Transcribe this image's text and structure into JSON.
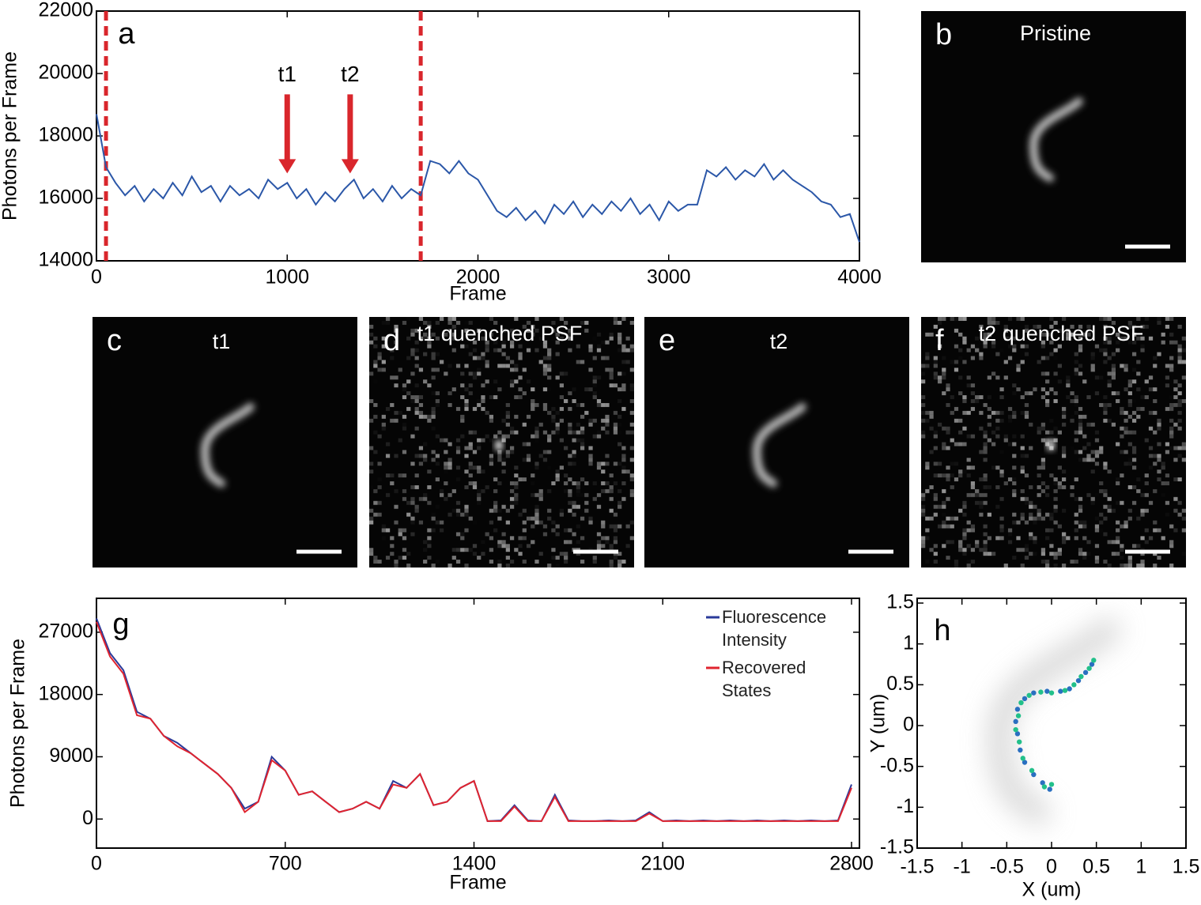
{
  "chart_data": [
    {
      "type": "line",
      "label": "a",
      "xlabel": "Frame",
      "ylabel": "Photons per Frame",
      "xlim": [
        0,
        4000
      ],
      "ylim": [
        14000,
        22000
      ],
      "xticks": [
        0,
        1000,
        2000,
        3000,
        4000
      ],
      "yticks": [
        14000,
        16000,
        18000,
        20000,
        22000
      ],
      "vlines": [
        50,
        1700
      ],
      "vline_color": "#d9262c",
      "annotations": [
        {
          "text": "t1",
          "x": 1000,
          "y": 16800
        },
        {
          "text": "t2",
          "x": 1330,
          "y": 16800
        }
      ],
      "annotation_color": "#d9262c",
      "x": [
        0,
        50,
        100,
        150,
        200,
        250,
        300,
        350,
        400,
        450,
        500,
        550,
        600,
        650,
        700,
        750,
        800,
        850,
        900,
        950,
        1000,
        1050,
        1100,
        1150,
        1200,
        1250,
        1300,
        1350,
        1400,
        1450,
        1500,
        1550,
        1600,
        1650,
        1700,
        1750,
        1800,
        1850,
        1900,
        1950,
        2000,
        2050,
        2100,
        2150,
        2200,
        2250,
        2300,
        2350,
        2400,
        2450,
        2500,
        2550,
        2600,
        2650,
        2700,
        2750,
        2800,
        2850,
        2900,
        2950,
        3000,
        3050,
        3100,
        3150,
        3200,
        3250,
        3300,
        3350,
        3400,
        3450,
        3500,
        3550,
        3600,
        3650,
        3700,
        3750,
        3800,
        3850,
        3900,
        3950,
        4000
      ],
      "series": [
        {
          "color": "#2b57a8",
          "values": [
            18700,
            17000,
            16500,
            16100,
            16400,
            15900,
            16300,
            16000,
            16500,
            16100,
            16700,
            16200,
            16400,
            15900,
            16400,
            16100,
            16300,
            16000,
            16600,
            16300,
            16500,
            16000,
            16300,
            15800,
            16200,
            15900,
            16300,
            16600,
            16000,
            16300,
            15900,
            16400,
            16000,
            16300,
            16100,
            17200,
            17100,
            16800,
            17200,
            16800,
            16600,
            16100,
            15600,
            15400,
            15700,
            15300,
            15600,
            15200,
            15800,
            15500,
            15900,
            15400,
            15800,
            15500,
            15900,
            15600,
            16000,
            15500,
            15800,
            15300,
            15900,
            15600,
            15800,
            15800,
            16900,
            16700,
            17000,
            16600,
            16900,
            16700,
            17100,
            16600,
            16900,
            16600,
            16400,
            16200,
            15900,
            15800,
            15400,
            15500,
            14600
          ]
        }
      ]
    },
    {
      "type": "line",
      "label": "g",
      "xlabel": "Frame",
      "ylabel": "Photons per Frame",
      "xlim": [
        0,
        2800
      ],
      "ylim": [
        -4200,
        31900
      ],
      "xticks": [
        0,
        700,
        1400,
        2100,
        2800
      ],
      "yticks": [
        0,
        9000,
        18000,
        27000
      ],
      "legend": "upper right",
      "x": [
        0,
        50,
        100,
        150,
        200,
        250,
        300,
        350,
        400,
        450,
        500,
        550,
        600,
        650,
        700,
        750,
        800,
        850,
        900,
        950,
        1000,
        1050,
        1100,
        1150,
        1200,
        1250,
        1300,
        1350,
        1400,
        1450,
        1500,
        1550,
        1600,
        1650,
        1700,
        1750,
        1800,
        1850,
        1900,
        1950,
        2000,
        2050,
        2100,
        2150,
        2200,
        2250,
        2300,
        2350,
        2400,
        2450,
        2500,
        2550,
        2600,
        2650,
        2700,
        2750,
        2800
      ],
      "series": [
        {
          "name": "Fluorescence Intensity",
          "color": "#2a3a9a",
          "values": [
            29000,
            24000,
            21500,
            15500,
            14500,
            12000,
            11000,
            9500,
            8000,
            6500,
            4500,
            1500,
            2500,
            9000,
            7000,
            3500,
            4000,
            2500,
            1000,
            1500,
            2500,
            1500,
            5500,
            4500,
            6500,
            2000,
            2500,
            4500,
            5500,
            -300,
            -200,
            2000,
            -200,
            -300,
            3500,
            -200,
            -300,
            -300,
            -200,
            -300,
            -200,
            1000,
            -300,
            -200,
            -300,
            -200,
            -300,
            -200,
            -300,
            -200,
            -300,
            -200,
            -300,
            -200,
            -300,
            -200,
            5000
          ]
        },
        {
          "name": "Recovered States",
          "color": "#e0242f",
          "values": [
            28500,
            23500,
            21000,
            15000,
            14500,
            12000,
            10500,
            9500,
            8000,
            6500,
            4500,
            1000,
            2500,
            8500,
            7000,
            3500,
            4000,
            2500,
            1000,
            1500,
            2500,
            1500,
            5000,
            4500,
            6500,
            2000,
            2500,
            4500,
            5500,
            -300,
            -300,
            1800,
            -300,
            -300,
            3200,
            -300,
            -300,
            -300,
            -300,
            -300,
            -300,
            800,
            -300,
            -300,
            -300,
            -300,
            -300,
            -300,
            -300,
            -300,
            -300,
            -300,
            -300,
            -300,
            -300,
            -300,
            4500
          ]
        }
      ]
    },
    {
      "type": "scatter",
      "label": "h",
      "xlabel": "X (um)",
      "ylabel": "Y (um)",
      "xlim": [
        -1.5,
        1.5
      ],
      "ylim": [
        -1.5,
        1.5
      ],
      "xticks": [
        -1.5,
        -1,
        -0.5,
        0,
        0.5,
        1,
        1.5
      ],
      "yticks": [
        -1.5,
        -1,
        -0.5,
        0,
        0.5,
        1,
        1.5
      ],
      "series": [
        {
          "color": "#2a6fc0",
          "x": [
            -0.02,
            -0.1,
            -0.2,
            -0.3,
            -0.35,
            -0.38,
            -0.4,
            -0.38,
            -0.3,
            -0.2,
            -0.05,
            0.1,
            0.2,
            0.3,
            0.38,
            0.45
          ],
          "values": [
            -0.78,
            -0.7,
            -0.6,
            -0.45,
            -0.3,
            -0.1,
            0.05,
            0.2,
            0.33,
            0.4,
            0.42,
            0.42,
            0.45,
            0.55,
            0.65,
            0.75
          ]
        },
        {
          "color": "#22c08a",
          "x": [
            0.0,
            -0.08,
            -0.22,
            -0.32,
            -0.36,
            -0.4,
            -0.37,
            -0.34,
            -0.25,
            -0.12,
            0.0,
            0.15,
            0.25,
            0.33,
            0.42,
            0.47
          ],
          "values": [
            -0.72,
            -0.75,
            -0.55,
            -0.4,
            -0.2,
            -0.05,
            0.12,
            0.28,
            0.37,
            0.41,
            0.4,
            0.43,
            0.5,
            0.6,
            0.7,
            0.8
          ]
        }
      ]
    }
  ],
  "panels": [
    {
      "label": "b",
      "title": "Pristine"
    },
    {
      "label": "c",
      "title": "t1"
    },
    {
      "label": "d",
      "title": "t1 quenched PSF"
    },
    {
      "label": "e",
      "title": "t2"
    },
    {
      "label": "f",
      "title": "t2 quenched PSF"
    }
  ]
}
